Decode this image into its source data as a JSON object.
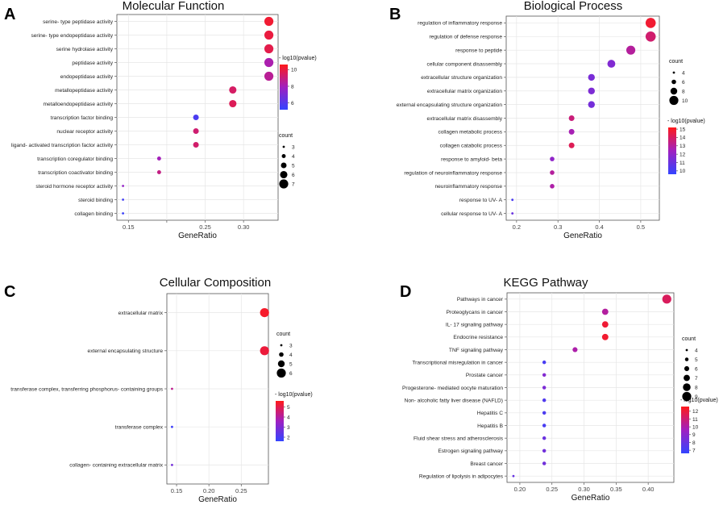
{
  "chart_data": [
    {
      "letter": "A",
      "type": "scatter",
      "title": "Molecular Function",
      "xlabel": "GeneRatio",
      "ylabel": "",
      "xlim": [
        0.135,
        0.345
      ],
      "xticks": [
        0.15,
        0.2,
        0.25,
        0.3
      ],
      "xtick_labels": [
        "0.15",
        "",
        "0.25",
        "0.30"
      ],
      "categories": [
        "serine- type peptidase activity",
        "serine- type endopeptidase activity",
        "serine hydrolase activity",
        "peptidase activity",
        "endopeptidase activity",
        "metallopeptidase activity",
        "metalloendopeptidase activity",
        "transcription factor binding",
        "nuclear receptor activity",
        "ligand- activated transcription factor activity",
        "transcription coregulator binding",
        "transcription coactivator binding",
        "steroid hormone receptor activity",
        "steroid binding",
        "collagen binding"
      ],
      "x": [
        0.333,
        0.333,
        0.333,
        0.333,
        0.333,
        0.286,
        0.286,
        0.238,
        0.238,
        0.238,
        0.19,
        0.19,
        0.143,
        0.143,
        0.143
      ],
      "count": [
        7,
        7,
        7,
        7,
        7,
        6,
        6,
        5,
        5,
        5,
        4,
        4,
        3,
        3,
        3
      ],
      "neglog10p": [
        10.2,
        10.0,
        9.8,
        8.2,
        8.6,
        9.4,
        9.6,
        5.8,
        9.2,
        9.3,
        8.0,
        8.9,
        7.6,
        5.6,
        5.4
      ],
      "color_legend": {
        "title": "- log10(pvalue)",
        "ticks": [
          6,
          8,
          10
        ],
        "min": 5.2,
        "max": 10.6
      },
      "size_legend": {
        "title": "count",
        "values": [
          3,
          4,
          5,
          6,
          7
        ]
      }
    },
    {
      "letter": "B",
      "type": "scatter",
      "title": "Biological Process",
      "xlabel": "GeneRatio",
      "ylabel": "",
      "xlim": [
        0.175,
        0.545
      ],
      "xticks": [
        0.2,
        0.3,
        0.4,
        0.5
      ],
      "xtick_labels": [
        "0.2",
        "0.3",
        "0.4",
        "0.5"
      ],
      "categories": [
        "regulation of inflammatory response",
        "regulation of defense response",
        "response to peptide",
        "cellular component disassembly",
        "extracellular structure organization",
        "extracellular matrix organization",
        "external encapsulating structure organization",
        "extracellular matrix disassembly",
        "collagen metabolic process",
        "collagen catabolic process",
        "response to amyloid- beta",
        "regulation of neuroinflammatory response",
        "neuroinflammatory response",
        "response to UV- A",
        "cellular response to UV- A"
      ],
      "x": [
        0.524,
        0.524,
        0.476,
        0.429,
        0.381,
        0.381,
        0.381,
        0.333,
        0.333,
        0.333,
        0.286,
        0.286,
        0.286,
        0.19,
        0.19
      ],
      "count": [
        11,
        11,
        10,
        9,
        8,
        8,
        8,
        7,
        7,
        7,
        6,
        6,
        6,
        4,
        4
      ],
      "neglog10p": [
        14.8,
        13.8,
        13.0,
        11.6,
        11.4,
        11.5,
        11.3,
        13.6,
        12.6,
        14.2,
        12.0,
        13.0,
        12.8,
        10.2,
        11.0
      ],
      "color_legend": {
        "title": "- log10(pvalue)",
        "ticks": [
          10,
          11,
          12,
          13,
          14,
          15
        ],
        "min": 9.6,
        "max": 15.2
      },
      "size_legend": {
        "title": "count",
        "values": [
          4,
          6,
          8,
          10
        ]
      }
    },
    {
      "letter": "C",
      "type": "scatter",
      "title": "Cellular Composition",
      "xlabel": "GeneRatio",
      "ylabel": "",
      "xlim": [
        0.135,
        0.292
      ],
      "xticks": [
        0.15,
        0.2,
        0.25
      ],
      "xtick_labels": [
        "0.15",
        "0.20",
        "0.25"
      ],
      "categories": [
        "extracellular matrix",
        "external encapsulating structure",
        "transferase complex, transferring phosphorus- containing groups",
        "transferase complex",
        "collagen- containing extracellular matrix"
      ],
      "x": [
        0.286,
        0.286,
        0.143,
        0.143,
        0.143
      ],
      "count": [
        6,
        6,
        3,
        3,
        3
      ],
      "neglog10p": [
        5.4,
        5.2,
        4.2,
        1.8,
        2.8
      ],
      "color_legend": {
        "title": "- log10(pvalue)",
        "ticks": [
          2,
          3,
          4,
          5
        ],
        "min": 1.6,
        "max": 5.6
      },
      "size_legend": {
        "title": "count",
        "values": [
          3,
          4,
          5,
          6
        ]
      }
    },
    {
      "letter": "D",
      "type": "scatter",
      "title": "KEGG Pathway",
      "xlabel": "GeneRatio",
      "ylabel": "",
      "xlim": [
        0.18,
        0.44
      ],
      "xticks": [
        0.2,
        0.25,
        0.3,
        0.35,
        0.4
      ],
      "xtick_labels": [
        "0.20",
        "0.25",
        "0.30",
        "0.35",
        "0.40"
      ],
      "categories": [
        "Pathways in cancer",
        "Proteoglycans in cancer",
        "IL- 17 signaling pathway",
        "Endocrine resistance",
        "TNF signaling pathway",
        "Transcriptional misregulation in cancer",
        "Prostate cancer",
        "Progesterone- mediated oocyte maturation",
        "Non- alcoholic fatty liver disease (NAFLD)",
        "Hepatitis C",
        "Hepatitis B",
        "Fluid shear stress and atherosclerosis",
        "Estrogen signaling pathway",
        "Breast cancer",
        "Regulation of lipolysis in adipocytes"
      ],
      "x": [
        0.429,
        0.333,
        0.333,
        0.333,
        0.286,
        0.238,
        0.238,
        0.238,
        0.238,
        0.238,
        0.238,
        0.238,
        0.238,
        0.238,
        0.19
      ],
      "count": [
        9,
        7,
        7,
        7,
        6,
        5,
        5,
        5,
        5,
        5,
        5,
        5,
        5,
        5,
        4
      ],
      "neglog10p": [
        11.4,
        10.2,
        12.1,
        12.2,
        10.0,
        7.2,
        8.8,
        8.6,
        7.4,
        7.3,
        7.2,
        8.1,
        8.3,
        8.3,
        8.0
      ],
      "color_legend": {
        "title": "- log10(pvalue)",
        "ticks": [
          7,
          8,
          9,
          10,
          11,
          12
        ],
        "min": 6.6,
        "max": 12.6
      },
      "size_legend": {
        "title": "count",
        "values": [
          4,
          5,
          6,
          7,
          8,
          9
        ]
      }
    }
  ],
  "colors": {
    "low": "#3344ff",
    "mid": "#a020c0",
    "high": "#ff1a1a",
    "grid": "#e6e6e6",
    "frame": "#555555"
  }
}
